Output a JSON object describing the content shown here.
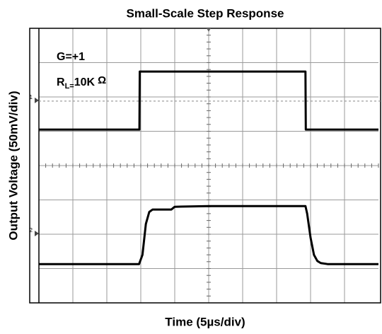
{
  "chart_data": {
    "type": "line",
    "title": "Small-Scale Step Response",
    "xlabel": "Time (5µs/div)",
    "ylabel": "Output Voltage (50mV/div)",
    "annotations": {
      "gain": "G=+1",
      "load": {
        "symbol": "R",
        "subscript": "L=",
        "value": "10K",
        "unit": "Ω"
      }
    },
    "x_divisions": 10,
    "y_divisions": 8,
    "xlim": [
      0,
      10
    ],
    "ylim": [
      0,
      8
    ],
    "reference_line": 5.88,
    "channel_markers": [
      {
        "label": "1",
        "y": 5.9
      },
      {
        "label": "2",
        "y": 2.02
      }
    ],
    "series": [
      {
        "color": "#000000",
        "x": [
          0,
          2.96,
          2.97,
          7.85,
          7.86,
          10
        ],
        "values": [
          5.05,
          5.05,
          6.74,
          6.74,
          5.05,
          5.05
        ]
      },
      {
        "color": "#000000",
        "x": [
          0,
          2.95,
          3.05,
          3.15,
          3.25,
          3.35,
          3.5,
          3.9,
          4.0,
          5,
          7.5,
          7.85,
          7.9,
          8.0,
          8.1,
          8.2,
          8.3,
          8.5,
          10
        ],
        "values": [
          1.13,
          1.13,
          1.4,
          2.3,
          2.65,
          2.72,
          2.72,
          2.72,
          2.8,
          2.82,
          2.82,
          2.82,
          2.6,
          1.9,
          1.4,
          1.22,
          1.16,
          1.13,
          1.13
        ]
      }
    ]
  }
}
